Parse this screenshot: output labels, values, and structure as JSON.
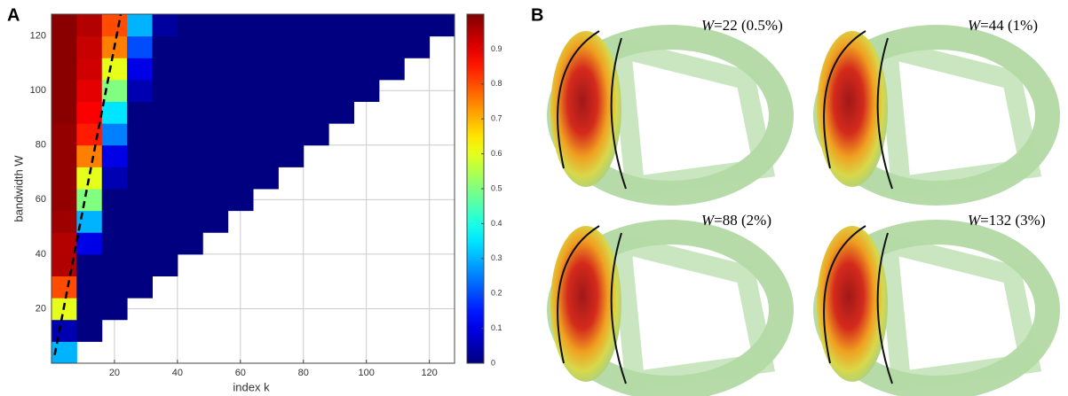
{
  "chart_data": {
    "type": "heatmap",
    "panel_label": "A",
    "xlabel": "index k",
    "ylabel": "bandwidth W",
    "xlim": [
      0,
      128
    ],
    "ylim": [
      0,
      128
    ],
    "xticks": [
      20,
      40,
      60,
      80,
      100,
      120
    ],
    "yticks": [
      20,
      40,
      60,
      80,
      100,
      120
    ],
    "grid": true,
    "colormap": "jet",
    "clim": [
      0,
      1
    ],
    "colorbar_ticks": [
      0,
      0.1,
      0.2,
      0.3,
      0.4,
      0.5,
      0.6,
      0.7,
      0.8,
      0.9
    ],
    "x": [
      4,
      12,
      20,
      28,
      36,
      44,
      52,
      60,
      68,
      76,
      84,
      92,
      100,
      108,
      116,
      124
    ],
    "y": [
      4,
      12,
      20,
      28,
      36,
      44,
      52,
      60,
      68,
      76,
      84,
      92,
      100,
      108,
      116,
      124
    ],
    "values": [
      [
        0.3,
        null,
        null,
        null,
        null,
        null,
        null,
        null,
        null,
        null,
        null,
        null,
        null,
        null,
        null,
        null
      ],
      [
        0.05,
        0,
        null,
        null,
        null,
        null,
        null,
        null,
        null,
        null,
        null,
        null,
        null,
        null,
        null,
        null
      ],
      [
        0.6,
        0,
        0,
        null,
        null,
        null,
        null,
        null,
        null,
        null,
        null,
        null,
        null,
        null,
        null,
        null
      ],
      [
        0.8,
        0,
        0,
        0,
        null,
        null,
        null,
        null,
        null,
        null,
        null,
        null,
        null,
        null,
        null,
        null
      ],
      [
        0.95,
        0,
        0,
        0,
        0,
        null,
        null,
        null,
        null,
        null,
        null,
        null,
        null,
        null,
        null,
        null
      ],
      [
        0.95,
        0.1,
        0,
        0,
        0,
        0,
        null,
        null,
        null,
        null,
        null,
        null,
        null,
        null,
        null,
        null
      ],
      [
        0.97,
        0.3,
        0,
        0,
        0,
        0,
        0,
        null,
        null,
        null,
        null,
        null,
        null,
        null,
        null,
        null
      ],
      [
        0.98,
        0.5,
        0,
        0,
        0,
        0,
        0,
        0,
        null,
        null,
        null,
        null,
        null,
        null,
        null,
        null
      ],
      [
        0.98,
        0.6,
        0.05,
        0,
        0,
        0,
        0,
        0,
        0,
        null,
        null,
        null,
        null,
        null,
        null,
        null
      ],
      [
        0.98,
        0.75,
        0.1,
        0,
        0,
        0,
        0,
        0,
        0,
        0,
        null,
        null,
        null,
        null,
        null,
        null
      ],
      [
        0.98,
        0.85,
        0.25,
        0,
        0,
        0,
        0,
        0,
        0,
        0,
        0,
        null,
        null,
        null,
        null,
        null
      ],
      [
        0.99,
        0.88,
        0.35,
        0,
        0,
        0,
        0,
        0,
        0,
        0,
        0,
        0,
        null,
        null,
        null,
        null
      ],
      [
        0.99,
        0.9,
        0.5,
        0.05,
        0,
        0,
        0,
        0,
        0,
        0,
        0,
        0,
        0,
        null,
        null,
        null
      ],
      [
        0.99,
        0.92,
        0.6,
        0.1,
        0,
        0,
        0,
        0,
        0,
        0,
        0,
        0,
        0,
        0,
        null,
        null
      ],
      [
        0.99,
        0.93,
        0.75,
        0.2,
        0,
        0,
        0,
        0,
        0,
        0,
        0,
        0,
        0,
        0,
        0,
        null
      ],
      [
        0.99,
        0.95,
        0.8,
        0.3,
        0.03,
        0,
        0,
        0,
        0,
        0,
        0,
        0,
        0,
        0,
        0,
        0
      ]
    ],
    "dashed_line": {
      "x": [
        1,
        22
      ],
      "y": [
        3,
        128
      ]
    }
  },
  "panel_b": {
    "panel_label": "B",
    "images": [
      {
        "var": "W",
        "text": "=22 (0.5%)"
      },
      {
        "var": "W",
        "text": "=44 (1%)"
      },
      {
        "var": "W",
        "text": "=88 (2%)"
      },
      {
        "var": "W",
        "text": "=132 (3%)"
      }
    ]
  }
}
